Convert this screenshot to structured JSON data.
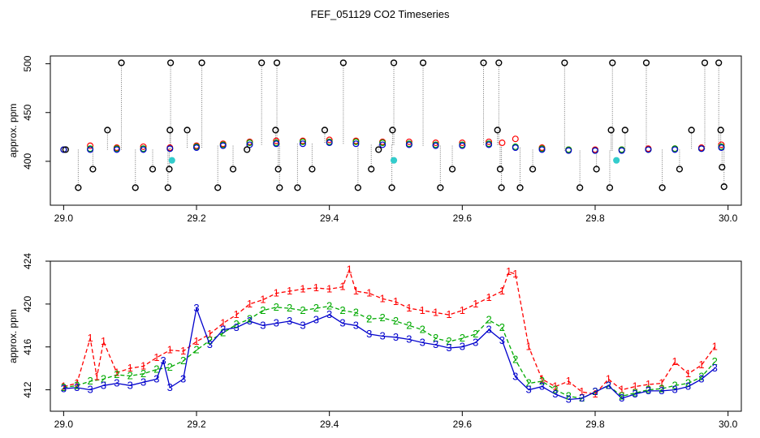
{
  "title": "FEF_051129  CO2 Timeseries",
  "chart_data": [
    {
      "type": "scatter",
      "title": "FEF_051129  CO2 Timeseries",
      "xlabel": "",
      "ylabel": "approx. ppm",
      "xlim": [
        28.98,
        30.02
      ],
      "ylim": [
        355,
        508
      ],
      "xticks": [
        29.0,
        29.2,
        29.4,
        29.6,
        29.8,
        30.0
      ],
      "xtick_labels": [
        "29.0",
        "29.2",
        "29.4",
        "29.6",
        "29.8",
        "30.0"
      ],
      "yticks": [
        400,
        450,
        500
      ],
      "ytick_labels": [
        "400",
        "450",
        "500"
      ],
      "grid": false,
      "series": [
        {
          "name": "black raw spikes",
          "color": "#000000",
          "marker": "open-circle",
          "x": [
            29.003,
            29.022,
            29.044,
            29.066,
            29.087,
            29.108,
            29.134,
            29.157,
            29.159,
            29.16,
            29.161,
            29.186,
            29.208,
            29.232,
            29.255,
            29.276,
            29.298,
            29.319,
            29.321,
            29.323,
            29.325,
            29.352,
            29.374,
            29.393,
            29.421,
            29.443,
            29.463,
            29.474,
            29.494,
            29.495,
            29.497,
            29.541,
            29.567,
            29.585,
            29.632,
            29.653,
            29.655,
            29.657,
            29.659,
            29.687,
            29.706,
            29.754,
            29.777,
            29.802,
            29.822,
            29.824,
            29.826,
            29.845,
            29.877,
            29.901,
            29.927,
            29.945,
            29.965,
            29.986,
            29.989,
            29.991,
            29.994
          ],
          "y": [
            412,
            373,
            392,
            432,
            501,
            373,
            392,
            373,
            392,
            432,
            501,
            432,
            501,
            373,
            392,
            412,
            501,
            432,
            501,
            392,
            373,
            373,
            392,
            432,
            501,
            373,
            392,
            412,
            373,
            432,
            501,
            501,
            373,
            392,
            501,
            432,
            501,
            392,
            373,
            373,
            392,
            501,
            373,
            392,
            373,
            432,
            501,
            432,
            501,
            373,
            392,
            432,
            501,
            501,
            432,
            394,
            374
          ]
        },
        {
          "name": "red",
          "color": "#ff0000",
          "marker": "open-circle",
          "x": [
            29.0,
            29.04,
            29.08,
            29.12,
            29.16,
            29.2,
            29.24,
            29.28,
            29.32,
            29.36,
            29.4,
            29.44,
            29.48,
            29.52,
            29.56,
            29.6,
            29.64,
            29.66,
            29.68,
            29.72,
            29.76,
            29.8,
            29.84,
            29.88,
            29.92,
            29.96,
            29.99
          ],
          "y": [
            412,
            416,
            414,
            415,
            414,
            416,
            418,
            420,
            421,
            421,
            422,
            421,
            420,
            420,
            419,
            419,
            420,
            419,
            423,
            414,
            412,
            412,
            412,
            413,
            413,
            414,
            417
          ]
        },
        {
          "name": "green",
          "color": "#00aa00",
          "marker": "open-circle",
          "x": [
            29.0,
            29.04,
            29.08,
            29.12,
            29.16,
            29.2,
            29.24,
            29.28,
            29.32,
            29.36,
            29.4,
            29.44,
            29.48,
            29.52,
            29.56,
            29.6,
            29.64,
            29.68,
            29.72,
            29.76,
            29.8,
            29.84,
            29.88,
            29.92,
            29.96,
            29.99
          ],
          "y": [
            412,
            413,
            413,
            413,
            413,
            415,
            417,
            419,
            419,
            420,
            420,
            420,
            419,
            418,
            417,
            417,
            418,
            415,
            413,
            412,
            411,
            412,
            412,
            413,
            413,
            415
          ]
        },
        {
          "name": "blue",
          "color": "#0000cc",
          "marker": "open-circle",
          "x": [
            29.0,
            29.04,
            29.08,
            29.12,
            29.16,
            29.2,
            29.24,
            29.28,
            29.32,
            29.36,
            29.4,
            29.44,
            29.48,
            29.52,
            29.56,
            29.6,
            29.64,
            29.68,
            29.72,
            29.76,
            29.8,
            29.84,
            29.88,
            29.92,
            29.96,
            29.99
          ],
          "y": [
            412,
            412,
            412,
            412,
            413,
            414,
            416,
            417,
            418,
            418,
            419,
            418,
            417,
            417,
            416,
            416,
            417,
            414,
            412,
            411,
            411,
            411,
            412,
            412,
            413,
            414
          ]
        },
        {
          "name": "cyan",
          "color": "#33cccc",
          "marker": "filled-circle",
          "x": [
            29.163,
            29.497,
            29.832
          ],
          "y": [
            401,
            401,
            401
          ]
        }
      ]
    },
    {
      "type": "line",
      "title": "",
      "xlabel": "",
      "ylabel": "approx. ppm",
      "xlim": [
        28.98,
        30.02
      ],
      "ylim": [
        410,
        424
      ],
      "xticks": [
        29.0,
        29.2,
        29.4,
        29.6,
        29.8,
        30.0
      ],
      "xtick_labels": [
        "29.0",
        "29.2",
        "29.4",
        "29.6",
        "29.8",
        "30.0"
      ],
      "yticks": [
        412,
        416,
        420,
        424
      ],
      "ytick_labels": [
        "412",
        "416",
        "420",
        "424"
      ],
      "grid": false,
      "series": [
        {
          "name": "1",
          "color": "#ff0000",
          "marker_text": "1",
          "line_style": "dashed",
          "x": [
            29.0,
            29.02,
            29.04,
            29.05,
            29.06,
            29.08,
            29.1,
            29.12,
            29.14,
            29.16,
            29.18,
            29.2,
            29.22,
            29.24,
            29.26,
            29.28,
            29.3,
            29.32,
            29.34,
            29.36,
            29.38,
            29.4,
            29.42,
            29.43,
            29.44,
            29.46,
            29.48,
            29.5,
            29.52,
            29.54,
            29.56,
            29.58,
            29.6,
            29.62,
            29.64,
            29.66,
            29.67,
            29.68,
            29.7,
            29.72,
            29.74,
            29.76,
            29.78,
            29.8,
            29.82,
            29.84,
            29.86,
            29.88,
            29.9,
            29.92,
            29.94,
            29.96,
            29.98
          ],
          "y": [
            412.3,
            412.6,
            416.8,
            413.2,
            416.5,
            413.6,
            414.0,
            414.2,
            415.0,
            415.7,
            415.6,
            416.5,
            417.2,
            418.2,
            419.0,
            420.0,
            420.4,
            421.0,
            421.2,
            421.4,
            421.5,
            421.4,
            421.6,
            423.2,
            421.2,
            421.0,
            420.5,
            420.2,
            419.6,
            419.4,
            419.2,
            419.0,
            419.4,
            420.0,
            420.6,
            421.2,
            423.0,
            422.8,
            416.0,
            413.0,
            412.3,
            412.8,
            411.8,
            411.6,
            413.0,
            412.0,
            412.3,
            412.5,
            412.6,
            414.6,
            413.5,
            414.3,
            416.0
          ]
        },
        {
          "name": "2",
          "color": "#00aa00",
          "marker_text": "2",
          "line_style": "dashed",
          "x": [
            29.0,
            29.02,
            29.04,
            29.06,
            29.08,
            29.1,
            29.12,
            29.14,
            29.16,
            29.18,
            29.2,
            29.22,
            29.24,
            29.26,
            29.28,
            29.3,
            29.32,
            29.34,
            29.36,
            29.38,
            29.4,
            29.42,
            29.44,
            29.46,
            29.48,
            29.5,
            29.52,
            29.54,
            29.56,
            29.58,
            29.6,
            29.62,
            29.64,
            29.66,
            29.68,
            29.7,
            29.72,
            29.74,
            29.76,
            29.78,
            29.8,
            29.82,
            29.84,
            29.86,
            29.88,
            29.9,
            29.92,
            29.94,
            29.96,
            29.98
          ],
          "y": [
            412.2,
            412.4,
            412.8,
            413.0,
            413.4,
            413.3,
            413.5,
            413.9,
            414.1,
            414.7,
            415.7,
            416.6,
            417.3,
            418.1,
            418.6,
            419.4,
            419.7,
            419.6,
            419.4,
            419.6,
            419.8,
            419.4,
            419.2,
            418.6,
            418.7,
            418.4,
            418.0,
            417.6,
            416.8,
            416.5,
            416.8,
            417.2,
            418.5,
            417.8,
            414.8,
            412.6,
            412.8,
            412.0,
            411.4,
            411.2,
            411.8,
            412.4,
            411.4,
            411.7,
            412.0,
            412.1,
            412.4,
            412.6,
            413.2,
            414.6
          ]
        },
        {
          "name": "3",
          "color": "#0000cc",
          "marker_text": "3",
          "line_style": "solid",
          "x": [
            29.0,
            29.02,
            29.04,
            29.06,
            29.08,
            29.1,
            29.12,
            29.14,
            29.15,
            29.16,
            29.18,
            29.2,
            29.22,
            29.24,
            29.26,
            29.28,
            29.3,
            29.32,
            29.34,
            29.36,
            29.38,
            29.4,
            29.42,
            29.44,
            29.46,
            29.48,
            29.5,
            29.52,
            29.54,
            29.56,
            29.58,
            29.6,
            29.62,
            29.64,
            29.66,
            29.68,
            29.7,
            29.72,
            29.74,
            29.76,
            29.78,
            29.8,
            29.82,
            29.84,
            29.86,
            29.88,
            29.9,
            29.92,
            29.94,
            29.96,
            29.98
          ],
          "y": [
            412.1,
            412.2,
            412.0,
            412.4,
            412.6,
            412.4,
            412.7,
            413.0,
            414.7,
            412.2,
            413.0,
            419.6,
            416.2,
            417.6,
            417.8,
            418.4,
            418.0,
            418.2,
            418.4,
            418.0,
            418.5,
            419.0,
            418.2,
            418.0,
            417.2,
            417.0,
            416.9,
            416.7,
            416.4,
            416.2,
            415.9,
            416.0,
            416.4,
            417.6,
            416.6,
            413.2,
            412.0,
            412.3,
            411.6,
            411.1,
            411.2,
            411.8,
            412.4,
            411.2,
            411.6,
            411.9,
            411.9,
            412.0,
            412.3,
            413.0,
            414.0
          ]
        }
      ]
    }
  ]
}
